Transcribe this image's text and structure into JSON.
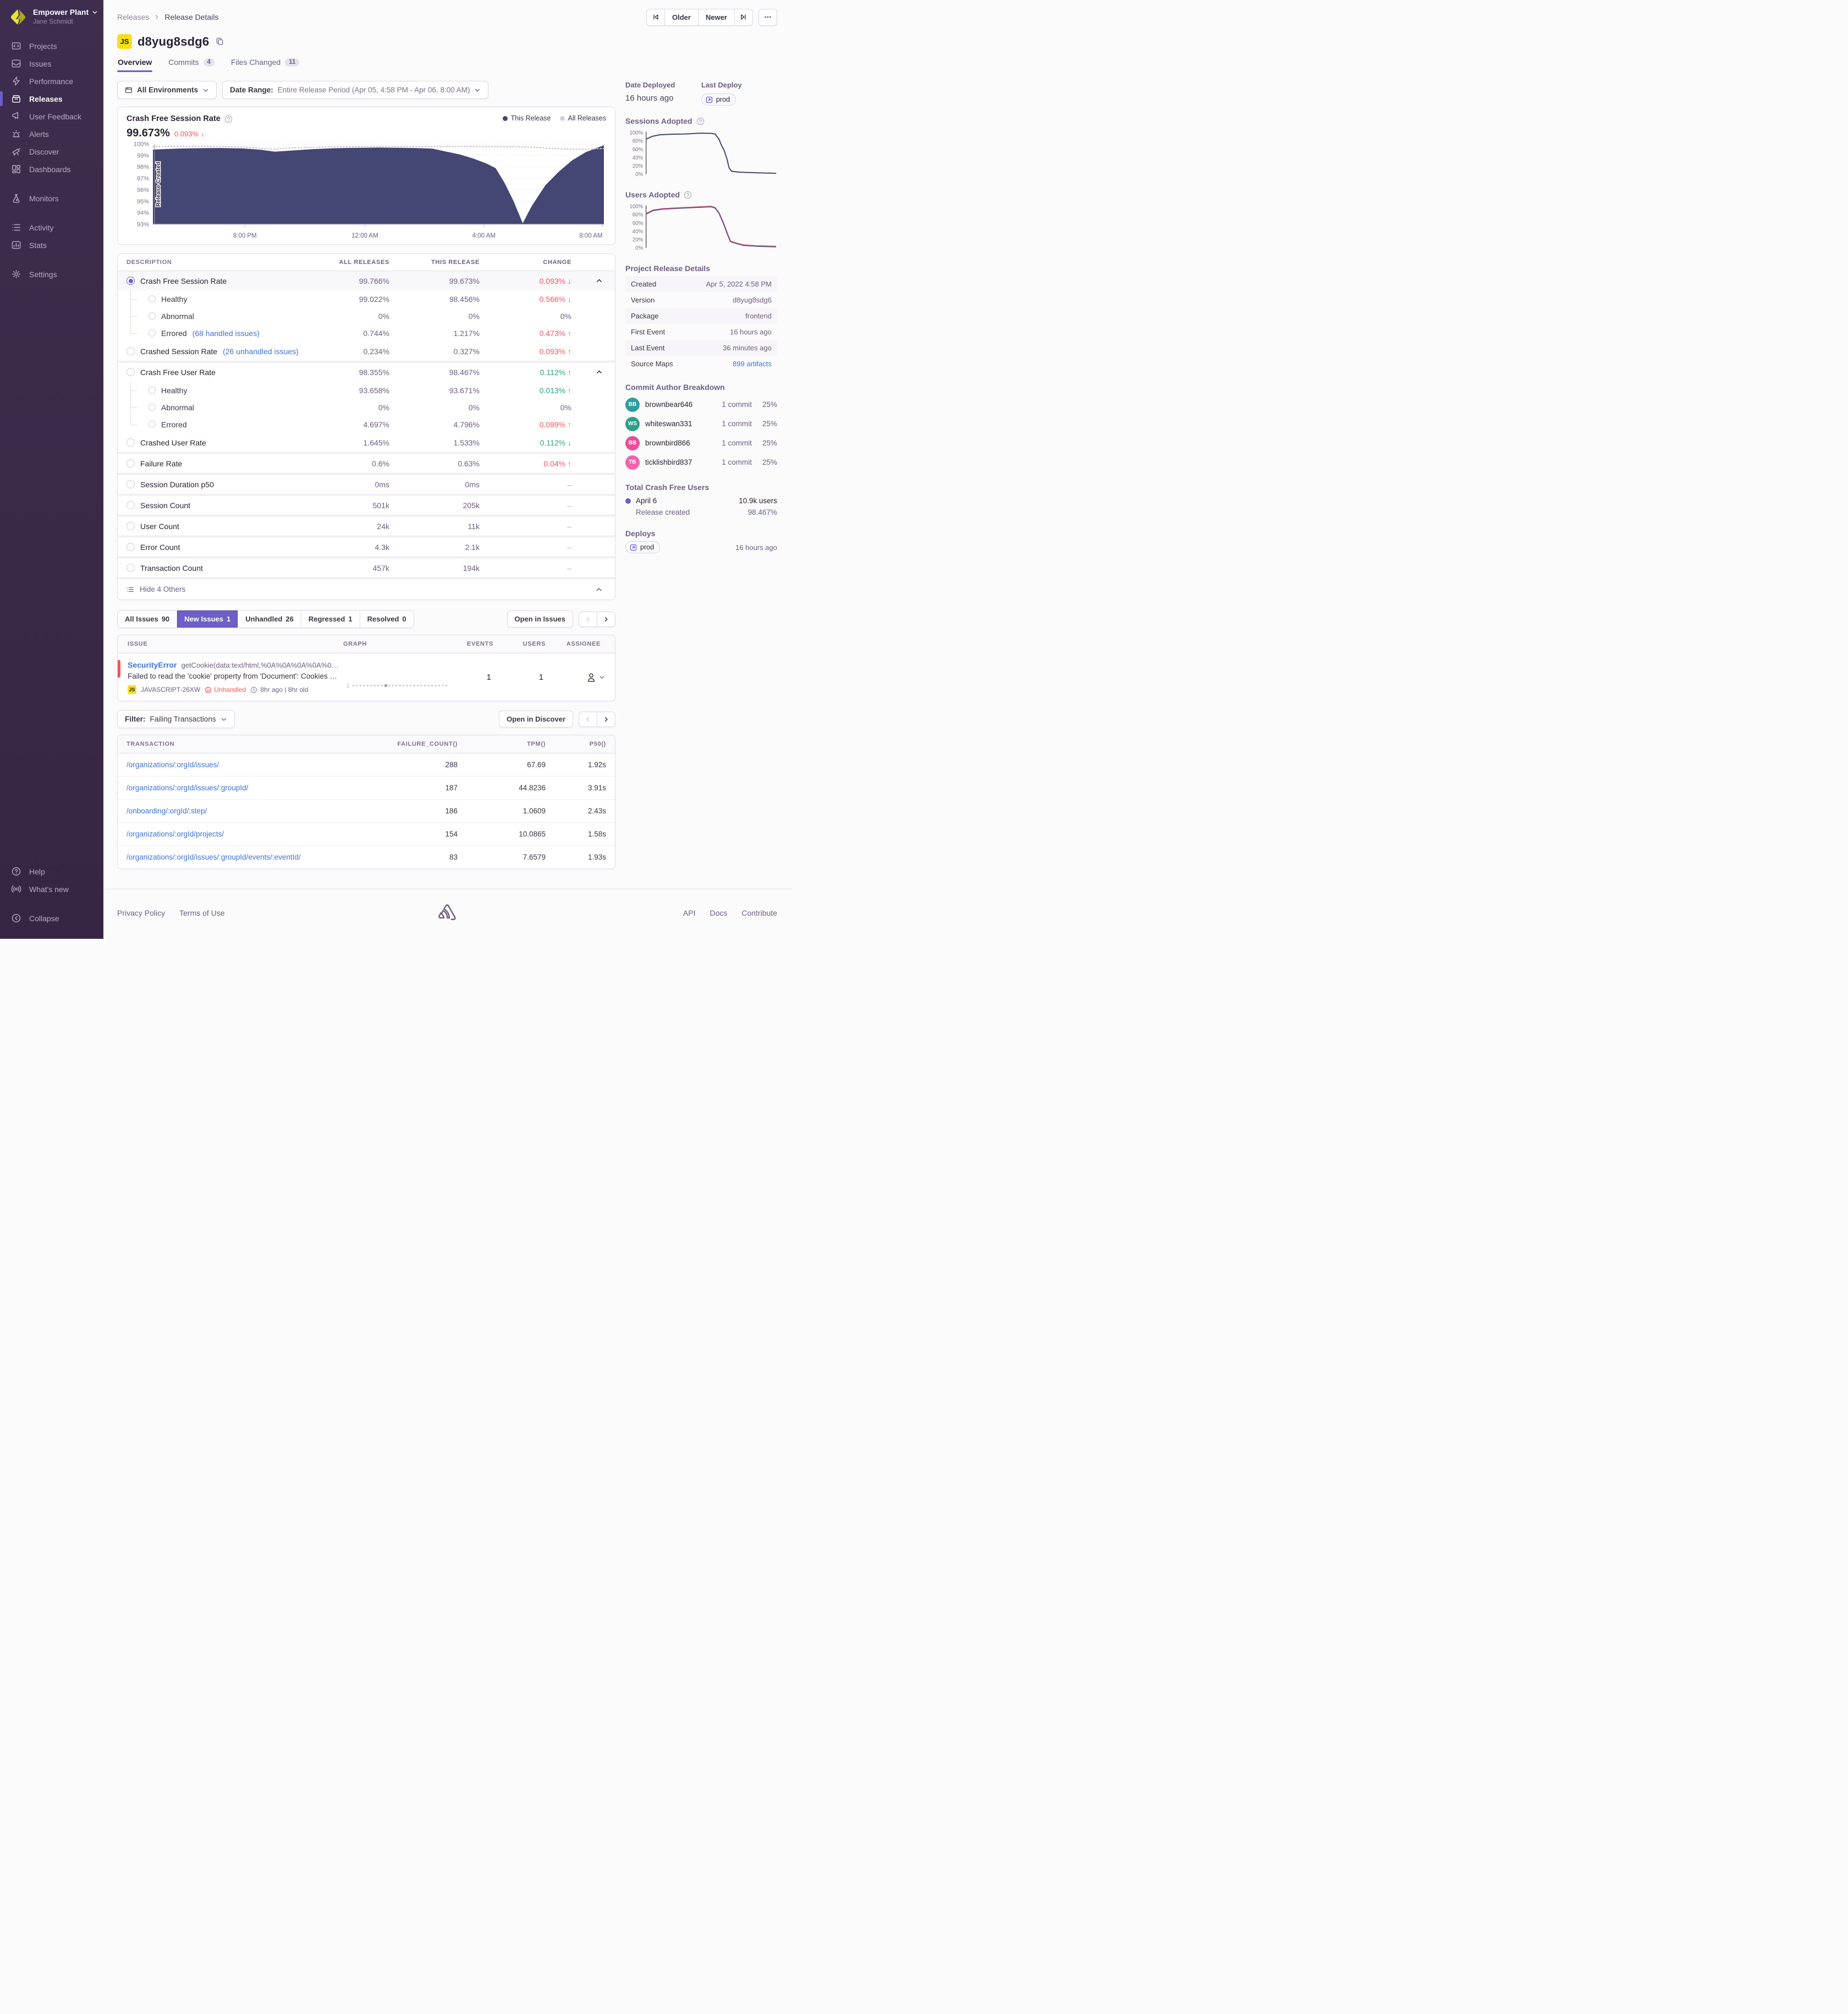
{
  "sidebar": {
    "org": "Empower Plant",
    "user": "Jane Schmidt",
    "items": [
      {
        "label": "Projects",
        "icon": "projects"
      },
      {
        "label": "Issues",
        "icon": "issues"
      },
      {
        "label": "Performance",
        "icon": "performance"
      },
      {
        "label": "Releases",
        "icon": "releases",
        "active": true
      },
      {
        "label": "User Feedback",
        "icon": "feedback"
      },
      {
        "label": "Alerts",
        "icon": "alerts"
      },
      {
        "label": "Discover",
        "icon": "discover"
      },
      {
        "label": "Dashboards",
        "icon": "dashboards"
      },
      {
        "label": "Monitors",
        "icon": "monitors",
        "gap_before": true
      },
      {
        "label": "Activity",
        "icon": "activity",
        "gap_before": true
      },
      {
        "label": "Stats",
        "icon": "stats"
      },
      {
        "label": "Settings",
        "icon": "settings",
        "gap_before": true
      }
    ],
    "footer_items": [
      {
        "label": "Help",
        "icon": "help"
      },
      {
        "label": "What's new",
        "icon": "broadcast"
      },
      {
        "label": "Collapse",
        "icon": "collapse",
        "gap_before": true
      }
    ]
  },
  "header": {
    "breadcrumb": [
      "Releases",
      "Release Details"
    ],
    "older_label": "Older",
    "newer_label": "Newer",
    "title": "d8yug8sdg6",
    "title_badge": "JS",
    "tabs": [
      {
        "label": "Overview",
        "active": true
      },
      {
        "label": "Commits",
        "badge": "4"
      },
      {
        "label": "Files Changed",
        "badge": "11"
      }
    ]
  },
  "filters": {
    "environment": "All Environments",
    "date_label": "Date Range:",
    "date_value": "Entire Release Period (Apr 05, 4:58 PM - Apr 06, 8:00 AM)"
  },
  "chart_header": {
    "title": "Crash Free Session Rate",
    "value": "99.673%",
    "change": "0.093%",
    "change_dir": "down",
    "legend": [
      {
        "label": "This Release",
        "color": "#444674"
      },
      {
        "label": "All Releases",
        "color": "#d4d0e0"
      }
    ]
  },
  "chart_data": [
    {
      "id": "main-chart",
      "type": "area",
      "title": "Crash Free Session Rate",
      "ylabel": "Crash Free Session Rate (%)",
      "ylim": [
        93,
        100
      ],
      "y_ticks": [
        "100%",
        "99%",
        "98%",
        "97%",
        "96%",
        "95%",
        "94%",
        "93%"
      ],
      "x_ticks": [
        {
          "pos": 0.204,
          "label": "8:00 PM"
        },
        {
          "pos": 0.47,
          "label": "12:00 AM"
        },
        {
          "pos": 0.734,
          "label": "4:00 AM"
        },
        {
          "pos": 0.997,
          "label": "8:00 AM"
        }
      ],
      "annotation": "Release Created",
      "series": [
        {
          "name": "This Release",
          "color": "#444674",
          "style": "area",
          "points": [
            [
              0,
              99.52
            ],
            [
              0.05,
              99.6
            ],
            [
              0.1,
              99.64
            ],
            [
              0.15,
              99.66
            ],
            [
              0.2,
              99.62
            ],
            [
              0.24,
              99.5
            ],
            [
              0.27,
              99.34
            ],
            [
              0.3,
              99.42
            ],
            [
              0.35,
              99.55
            ],
            [
              0.4,
              99.64
            ],
            [
              0.45,
              99.68
            ],
            [
              0.5,
              99.7
            ],
            [
              0.55,
              99.68
            ],
            [
              0.58,
              99.66
            ],
            [
              0.62,
              99.6
            ],
            [
              0.65,
              99.35
            ],
            [
              0.68,
              99.1
            ],
            [
              0.71,
              98.75
            ],
            [
              0.74,
              98.3
            ],
            [
              0.76,
              97.9
            ],
            [
              0.78,
              96.6
            ],
            [
              0.8,
              95.0
            ],
            [
              0.82,
              93.1
            ],
            [
              0.84,
              94.6
            ],
            [
              0.87,
              96.4
            ],
            [
              0.9,
              97.6
            ],
            [
              0.93,
              98.6
            ],
            [
              0.96,
              99.3
            ],
            [
              1,
              99.9
            ]
          ]
        },
        {
          "name": "All Releases",
          "color": "#c9c1d4",
          "style": "dotted",
          "points": [
            [
              0,
              99.78
            ],
            [
              0.1,
              99.82
            ],
            [
              0.2,
              99.76
            ],
            [
              0.24,
              99.62
            ],
            [
              0.27,
              99.56
            ],
            [
              0.3,
              99.66
            ],
            [
              0.4,
              99.78
            ],
            [
              0.5,
              99.8
            ],
            [
              0.6,
              99.78
            ],
            [
              0.7,
              99.8
            ],
            [
              0.8,
              99.78
            ],
            [
              0.85,
              99.72
            ],
            [
              0.88,
              99.62
            ],
            [
              0.92,
              99.56
            ],
            [
              0.96,
              99.55
            ],
            [
              1,
              99.62
            ]
          ]
        }
      ]
    },
    {
      "id": "sessions-adopted-chart",
      "type": "line",
      "title": "Sessions Adopted",
      "ylim": [
        0,
        100
      ],
      "y_ticks": [
        "100%",
        "80%",
        "60%",
        "40%",
        "20%",
        "0%"
      ],
      "series": [
        {
          "name": "Sessions Adopted",
          "color": "#444674",
          "width": 2.2,
          "points": [
            [
              0,
              85
            ],
            [
              0.04,
              91
            ],
            [
              0.1,
              95
            ],
            [
              0.2,
              96.5
            ],
            [
              0.3,
              97
            ],
            [
              0.42,
              99
            ],
            [
              0.5,
              98.5
            ],
            [
              0.53,
              97
            ],
            [
              0.56,
              85
            ],
            [
              0.58,
              70
            ],
            [
              0.6,
              58
            ],
            [
              0.62,
              40
            ],
            [
              0.64,
              15
            ],
            [
              0.66,
              7
            ],
            [
              0.72,
              5
            ],
            [
              0.8,
              4
            ],
            [
              0.9,
              3
            ],
            [
              1,
              2.5
            ]
          ]
        }
      ]
    },
    {
      "id": "users-adopted-chart",
      "type": "line",
      "title": "Users Adopted",
      "ylim": [
        0,
        100
      ],
      "y_ticks": [
        "100%",
        "80%",
        "60%",
        "40%",
        "20%",
        "0%"
      ],
      "series": [
        {
          "name": "Users Adopted (all releases)",
          "color": "#e0557e",
          "width": 2.6,
          "points": [
            [
              0,
              83
            ],
            [
              0.05,
              91
            ],
            [
              0.12,
              94
            ],
            [
              0.25,
              96.5
            ],
            [
              0.4,
              98.5
            ],
            [
              0.5,
              100
            ],
            [
              0.53,
              97
            ],
            [
              0.56,
              85
            ],
            [
              0.58,
              71
            ],
            [
              0.6,
              56
            ],
            [
              0.63,
              31
            ],
            [
              0.65,
              16
            ],
            [
              0.7,
              11
            ],
            [
              0.75,
              7
            ],
            [
              0.85,
              5
            ],
            [
              1,
              3.5
            ]
          ]
        },
        {
          "name": "Users Adopted",
          "color": "#5b5584",
          "width": 1.8,
          "points": [
            [
              0,
              82
            ],
            [
              0.05,
              90
            ],
            [
              0.12,
              93
            ],
            [
              0.25,
              95.5
            ],
            [
              0.4,
              97.5
            ],
            [
              0.5,
              99
            ],
            [
              0.53,
              96
            ],
            [
              0.56,
              84
            ],
            [
              0.58,
              70
            ],
            [
              0.6,
              55
            ],
            [
              0.63,
              30
            ],
            [
              0.65,
              15
            ],
            [
              0.7,
              10
            ],
            [
              0.75,
              6
            ],
            [
              0.85,
              4
            ],
            [
              1,
              2.5
            ]
          ]
        }
      ]
    }
  ],
  "metrics": {
    "columns": [
      "Description",
      "All Releases",
      "This Release",
      "Change"
    ],
    "rows": [
      {
        "label": "Crash Free Session Rate",
        "all": "99.766%",
        "this": "99.673%",
        "change": "0.093%",
        "dir": "down",
        "tone": "bad",
        "level": 0,
        "radio": "selected",
        "expanded": true,
        "selected": true
      },
      {
        "label": "Healthy",
        "all": "99.022%",
        "this": "98.456%",
        "change": "0.566%",
        "dir": "down",
        "tone": "bad",
        "level": 1,
        "tree": "mid"
      },
      {
        "label": "Abnormal",
        "all": "0%",
        "this": "0%",
        "change": "0%",
        "dir": "none",
        "tone": "neutral",
        "level": 1,
        "tree": "mid"
      },
      {
        "label": "Errored",
        "link": "(68 handled issues)",
        "all": "0.744%",
        "this": "1.217%",
        "change": "0.473%",
        "dir": "up",
        "tone": "bad",
        "level": 1,
        "tree": "end"
      },
      {
        "label": "Crashed Session Rate",
        "link": "(26 unhandled issues)",
        "all": "0.234%",
        "this": "0.327%",
        "change": "0.093%",
        "dir": "up",
        "tone": "bad",
        "level": 0,
        "radio": "empty"
      },
      {
        "label": "Crash Free User Rate",
        "all": "98.355%",
        "this": "98.467%",
        "change": "0.112%",
        "dir": "up",
        "tone": "good",
        "level": 0,
        "radio": "empty",
        "expanded": true,
        "group_start": true
      },
      {
        "label": "Healthy",
        "all": "93.658%",
        "this": "93.671%",
        "change": "0.013%",
        "dir": "up",
        "tone": "good",
        "level": 1,
        "tree": "mid"
      },
      {
        "label": "Abnormal",
        "all": "0%",
        "this": "0%",
        "change": "0%",
        "dir": "none",
        "tone": "neutral",
        "level": 1,
        "tree": "mid"
      },
      {
        "label": "Errored",
        "all": "4.697%",
        "this": "4.796%",
        "change": "0.099%",
        "dir": "up",
        "tone": "bad",
        "level": 1,
        "tree": "end"
      },
      {
        "label": "Crashed User Rate",
        "all": "1.645%",
        "this": "1.533%",
        "change": "0.112%",
        "dir": "down",
        "tone": "good",
        "level": 0,
        "radio": "empty"
      },
      {
        "label": "Failure Rate",
        "all": "0.6%",
        "this": "0.63%",
        "change": "0.04%",
        "dir": "up",
        "tone": "bad",
        "level": 0,
        "radio": "empty",
        "group_start": true
      },
      {
        "label": "Session Duration p50",
        "all": "0ms",
        "this": "0ms",
        "change": "–",
        "dir": "none",
        "tone": "muted",
        "level": 0,
        "radio": "empty",
        "group_start": true
      },
      {
        "label": "Session Count",
        "all": "501k",
        "this": "205k",
        "change": "–",
        "dir": "none",
        "tone": "muted",
        "level": 0,
        "radio": "empty",
        "group_start": true
      },
      {
        "label": "User Count",
        "all": "24k",
        "this": "11k",
        "change": "–",
        "dir": "none",
        "tone": "muted",
        "level": 0,
        "radio": "empty",
        "group_start": true
      },
      {
        "label": "Error Count",
        "all": "4.3k",
        "this": "2.1k",
        "change": "–",
        "dir": "none",
        "tone": "muted",
        "level": 0,
        "radio": "empty",
        "group_start": true
      },
      {
        "label": "Transaction Count",
        "all": "457k",
        "this": "194k",
        "change": "–",
        "dir": "none",
        "tone": "muted",
        "level": 0,
        "radio": "empty",
        "group_start": true
      }
    ],
    "footer_label": "Hide 4 Others"
  },
  "issues": {
    "tabs": [
      {
        "label": "All Issues",
        "count": "90"
      },
      {
        "label": "New Issues",
        "count": "1",
        "active": true
      },
      {
        "label": "Unhandled",
        "count": "26"
      },
      {
        "label": "Regressed",
        "count": "1"
      },
      {
        "label": "Resolved",
        "count": "0"
      }
    ],
    "open_button": "Open in Issues",
    "columns": [
      "Issue",
      "Graph",
      "Events",
      "Users",
      "Assignee"
    ],
    "row": {
      "title": "SecurityError",
      "culprit": "getCookie(data:text/html,%0A%0A%0A%0A%0A%0…",
      "message": "Failed to read the 'cookie' property from 'Document': Cookies are disa…",
      "platform": "JS",
      "short_id": "JAVASCRIPT-26XW",
      "unhandled_label": "Unhandled",
      "age": "8hr ago | 8hr old",
      "events": "1",
      "users": "1",
      "spark_label": "1",
      "spark_marker_pos": 0.35
    }
  },
  "transactions": {
    "filter_label": "Filter:",
    "filter_value": "Failing Transactions",
    "open_button": "Open in Discover",
    "columns": [
      "transaction",
      "failure_count()",
      "tpm()",
      "p50()"
    ],
    "rows": [
      {
        "transaction": "/organizations/:orgId/issues/",
        "failure_count": "288",
        "tpm": "67.69",
        "p50": "1.92s"
      },
      {
        "transaction": "/organizations/:orgId/issues/:groupId/",
        "failure_count": "187",
        "tpm": "44.8236",
        "p50": "3.91s"
      },
      {
        "transaction": "/onboarding/:orgId/:step/",
        "failure_count": "186",
        "tpm": "1.0609",
        "p50": "2.43s"
      },
      {
        "transaction": "/organizations/:orgId/projects/",
        "failure_count": "154",
        "tpm": "10.0865",
        "p50": "1.58s"
      },
      {
        "transaction": "/organizations/:orgId/issues/:groupId/events/:eventId/",
        "failure_count": "83",
        "tpm": "7.6579",
        "p50": "1.93s"
      }
    ]
  },
  "right_panel": {
    "date_deployed_label": "Date Deployed",
    "date_deployed": "16 hours ago",
    "last_deploy_label": "Last Deploy",
    "deploy_env": "prod",
    "sessions_adopted_label": "Sessions Adopted",
    "users_adopted_label": "Users Adopted",
    "details_title": "Project Release Details",
    "details": [
      {
        "label": "Created",
        "value": "Apr 5, 2022 4:58 PM",
        "striped": true
      },
      {
        "label": "Version",
        "value": "d8yug8sdg6"
      },
      {
        "label": "Package",
        "value": "frontend",
        "striped": true
      },
      {
        "label": "First Event",
        "value": "16 hours ago"
      },
      {
        "label": "Last Event",
        "value": "36 minutes ago",
        "striped": true
      },
      {
        "label": "Source Maps",
        "value": "899 artifacts",
        "link": true
      }
    ],
    "authors_title": "Commit Author Breakdown",
    "authors": [
      {
        "initials": "BB",
        "name": "brownbear646",
        "commits": "1 commit",
        "percent": "25%",
        "color": "#2c9e9e"
      },
      {
        "initials": "WS",
        "name": "whiteswan331",
        "commits": "1 commit",
        "percent": "25%",
        "color": "#2ba185"
      },
      {
        "initials": "BB",
        "name": "brownbird866",
        "commits": "1 commit",
        "percent": "25%",
        "color": "#ec4c9a"
      },
      {
        "initials": "TB",
        "name": "ticklishbird837",
        "commits": "1 commit",
        "percent": "25%",
        "color": "#f363ad"
      }
    ],
    "crash_free_title": "Total Crash Free Users",
    "crash_free_rows": [
      {
        "label": "April 6",
        "value": "10.9k users",
        "dot": true
      },
      {
        "label": "Release created",
        "value": "98.467%",
        "sub": true
      }
    ],
    "deploys_title": "Deploys",
    "deploys": [
      {
        "env": "prod",
        "time": "16 hours ago"
      }
    ]
  },
  "footer": {
    "left": [
      "Privacy Policy",
      "Terms of Use"
    ],
    "right": [
      "API",
      "Docs",
      "Contribute"
    ]
  },
  "colors": {
    "accent": "#6c5fc7",
    "chart_fill": "#444674",
    "bad": "#f55459",
    "good": "#2ba185",
    "link": "#3d74db",
    "platform_yellow": "#f7df1e"
  }
}
